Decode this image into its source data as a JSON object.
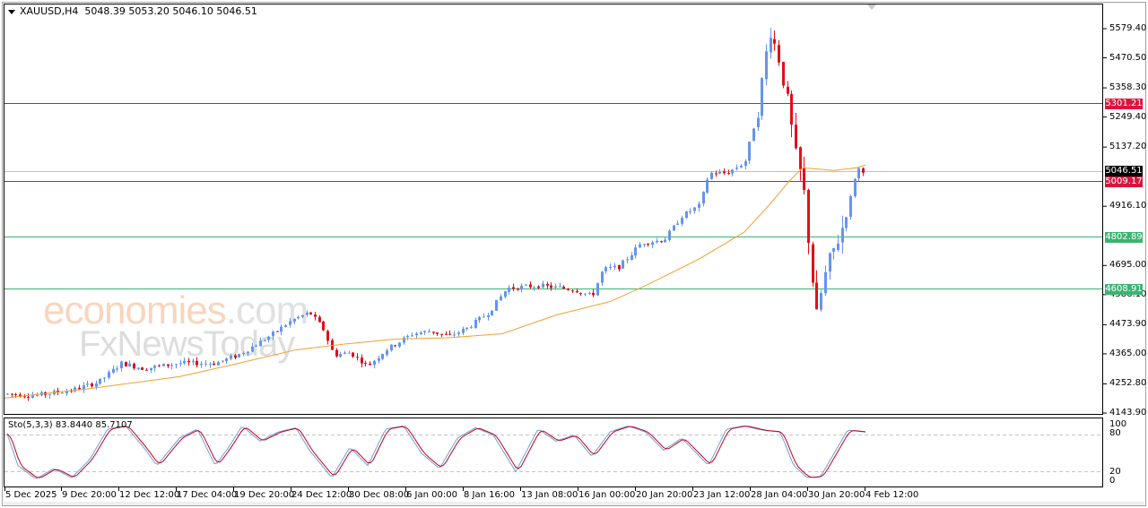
{
  "header": {
    "symbol": "XAUUSD,H4",
    "ohlc": "5048.39 5053.20 5046.10 5046.51",
    "open": 5048.39,
    "high": 5053.2,
    "low": 5046.1,
    "close": 5046.51
  },
  "watermark": {
    "line1_main": "economies",
    "line1_suffix": ".com",
    "line2": "FxNewsToday"
  },
  "price_axis": {
    "ticks": [
      "5579.40",
      "5470.50",
      "5358.30",
      "5249.40",
      "5137.20",
      "4916.10",
      "4695.00",
      "4586.10",
      "4473.90",
      "4365.00",
      "4252.80",
      "4143.90"
    ],
    "current_price_tag": "5046.51",
    "levels": [
      {
        "label": "5301.21",
        "value": 5301.21,
        "color": "#dc143c",
        "kind": "resistance"
      },
      {
        "label": "5009.17",
        "value": 5009.17,
        "color": "#dc143c",
        "kind": "resistance"
      },
      {
        "label": "4802.89",
        "value": 4802.89,
        "color": "#3cb371",
        "kind": "support"
      },
      {
        "label": "4608.91",
        "value": 4608.91,
        "color": "#3cb371",
        "kind": "support"
      }
    ]
  },
  "stochastic": {
    "title": "Sto(5,3,3) 83.8440 85.7107",
    "main": 83.844,
    "signal": 85.7107,
    "ticks": [
      "100",
      "80",
      "20",
      "0"
    ]
  },
  "time_axis": {
    "labels": [
      "5 Dec 2025",
      "9 Dec 20:00",
      "12 Dec 12:00",
      "17 Dec 04:00",
      "19 Dec 20:00",
      "24 Dec 12:00",
      "30 Dec 08:00",
      "6 Jan 00:00",
      "8 Jan 16:00",
      "13 Jan 08:00",
      "16 Jan 00:00",
      "20 Jan 20:00",
      "23 Jan 12:00",
      "28 Jan 04:00",
      "30 Jan 20:00",
      "4 Feb 12:00"
    ]
  },
  "colors": {
    "bull": "#6495ed",
    "bear": "#e0101a",
    "ma": "#f0a030",
    "sto_main": "#6f9fd8",
    "sto_signal": "#c00020",
    "current_price_line": "#c0c0c0"
  },
  "chart_data": {
    "type": "candlestick",
    "title": "XAUUSD,H4",
    "symbol": "XAUUSD",
    "timeframe": "H4",
    "last_bar": {
      "open": 5048.39,
      "high": 5053.2,
      "low": 5046.1,
      "close": 5046.51
    },
    "ylim": [
      4143.9,
      5579.4
    ],
    "yticks": [
      5579.4,
      5470.5,
      5358.3,
      5249.4,
      5137.2,
      4916.1,
      4695.0,
      4586.1,
      4473.9,
      4365.0,
      4252.8,
      4143.9
    ],
    "x_tick_labels": [
      "5 Dec 2025",
      "9 Dec 20:00",
      "12 Dec 12:00",
      "17 Dec 04:00",
      "19 Dec 20:00",
      "24 Dec 12:00",
      "30 Dec 08:00",
      "6 Jan 00:00",
      "8 Jan 16:00",
      "13 Jan 08:00",
      "16 Jan 00:00",
      "20 Jan 20:00",
      "23 Jan 12:00",
      "28 Jan 04:00",
      "30 Jan 20:00",
      "4 Feb 12:00"
    ],
    "horizontal_levels": [
      5301.21,
      5009.17,
      4802.89,
      4608.91
    ],
    "current_price": 5046.51,
    "approx_path": [
      {
        "date": "5 Dec 2025",
        "close": 4210
      },
      {
        "date": "9 Dec 20:00",
        "close": 4215
      },
      {
        "date": "12 Dec 12:00",
        "close": 4330
      },
      {
        "date": "17 Dec 04:00",
        "close": 4330
      },
      {
        "date": "19 Dec 20:00",
        "close": 4400
      },
      {
        "date": "24 Dec 12:00",
        "close": 4480
      },
      {
        "date": "30 Dec 08:00",
        "close": 4340
      },
      {
        "date": "6 Jan 00:00",
        "close": 4440
      },
      {
        "date": "8 Jan 16:00",
        "close": 4470
      },
      {
        "date": "13 Jan 08:00",
        "close": 4600
      },
      {
        "date": "16 Jan 00:00",
        "close": 4590
      },
      {
        "date": "20 Jan 20:00",
        "close": 4750
      },
      {
        "date": "23 Jan 12:00",
        "close": 5000
      },
      {
        "date": "28 Jan 04:00",
        "close": 5400
      },
      {
        "date": "29 Jan peak",
        "high": 5590
      },
      {
        "date": "30 Jan 20:00 low",
        "low": 4400
      },
      {
        "date": "4 Feb 12:00",
        "close": 5046.51
      }
    ],
    "moving_average": {
      "approx_end_value": 5060
    },
    "indicator": {
      "name": "Stochastic",
      "params": "5,3,3",
      "main": 83.844,
      "signal": 85.7107,
      "levels": [
        80,
        20
      ],
      "ylim": [
        0,
        100
      ]
    }
  }
}
